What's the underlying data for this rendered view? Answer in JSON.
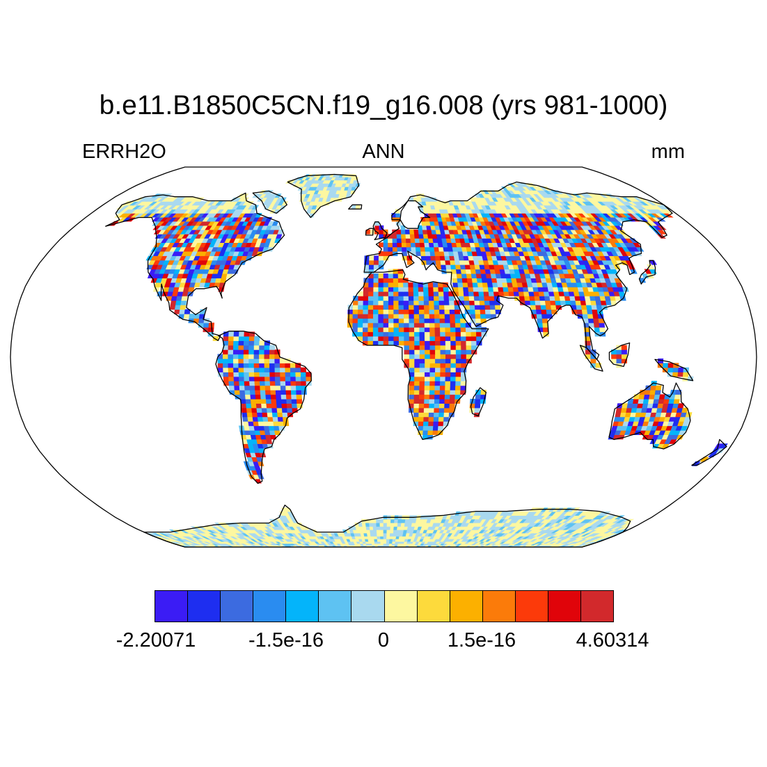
{
  "title": "b.e11.B1850C5CN.f19_g16.008 (yrs 981-1000)",
  "left_label": "ERRH2O",
  "center_label": "ANN",
  "right_label": "mm",
  "projection": "Robinson",
  "colorbar": {
    "colors": [
      "#3b1cf5",
      "#1e2ef0",
      "#3c6be0",
      "#2a8cf0",
      "#04b4fa",
      "#5ec2f2",
      "#a9d9ef",
      "#fdf7a0",
      "#fdda3c",
      "#fcb000",
      "#fb7b0a",
      "#fc3a0a",
      "#e0040a",
      "#d2292c"
    ],
    "labels": [
      "-2.20071",
      "-1.5e-16",
      "0",
      "1.5e-16",
      "4.60314"
    ],
    "min": -2.20071,
    "max": 4.60314
  }
}
